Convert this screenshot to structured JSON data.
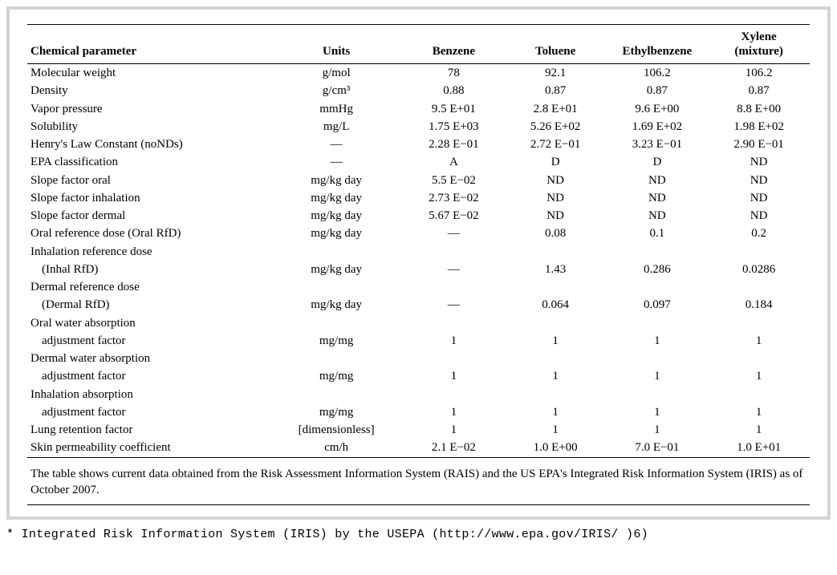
{
  "table": {
    "headers": {
      "param": "Chemical parameter",
      "units": "Units",
      "c1": "Benzene",
      "c2": "Toluene",
      "c3": "Ethylbenzene",
      "c4_line1": "Xylene",
      "c4_line2": "(mixture)"
    },
    "rows": [
      {
        "param": "Molecular weight",
        "units": "g/mol",
        "c1": "78",
        "c2": "92.1",
        "c3": "106.2",
        "c4": "106.2"
      },
      {
        "param": "Density",
        "units": "g/cm³",
        "c1": "0.88",
        "c2": "0.87",
        "c3": "0.87",
        "c4": "0.87"
      },
      {
        "param": "Vapor pressure",
        "units": "mmHg",
        "c1": "9.5 E+01",
        "c2": "2.8 E+01",
        "c3": "9.6 E+00",
        "c4": "8.8 E+00"
      },
      {
        "param": "Solubility",
        "units": "mg/L",
        "c1": "1.75 E+03",
        "c2": "5.26 E+02",
        "c3": "1.69 E+02",
        "c4": "1.98 E+02"
      },
      {
        "param": "Henry's Law Constant (noNDs)",
        "units": "—",
        "c1": "2.28 E−01",
        "c2": "2.72 E−01",
        "c3": "3.23 E−01",
        "c4": "2.90 E−01"
      },
      {
        "param": "EPA classification",
        "units": "—",
        "c1": "A",
        "c2": "D",
        "c3": "D",
        "c4": "ND"
      },
      {
        "param": "Slope factor oral",
        "units": "mg/kg day",
        "c1": "5.5 E−02",
        "c2": "ND",
        "c3": "ND",
        "c4": "ND"
      },
      {
        "param": "Slope factor inhalation",
        "units": "mg/kg day",
        "c1": "2.73 E−02",
        "c2": "ND",
        "c3": "ND",
        "c4": "ND"
      },
      {
        "param": "Slope factor dermal",
        "units": "mg/kg day",
        "c1": "5.67 E−02",
        "c2": "ND",
        "c3": "ND",
        "c4": "ND"
      },
      {
        "param": "Oral reference dose (Oral RfD)",
        "units": "mg/kg day",
        "c1": "—",
        "c2": "0.08",
        "c3": "0.1",
        "c4": "0.2"
      },
      {
        "param": "Inhalation reference dose",
        "units": "",
        "c1": "",
        "c2": "",
        "c3": "",
        "c4": ""
      },
      {
        "param": "(Inhal RfD)",
        "indent": true,
        "units": "mg/kg day",
        "c1": "—",
        "c2": "1.43",
        "c3": "0.286",
        "c4": "0.0286"
      },
      {
        "param": "Dermal reference dose",
        "units": "",
        "c1": "",
        "c2": "",
        "c3": "",
        "c4": ""
      },
      {
        "param": "(Dermal RfD)",
        "indent": true,
        "units": "mg/kg day",
        "c1": "—",
        "c2": "0.064",
        "c3": "0.097",
        "c4": "0.184"
      },
      {
        "param": "Oral water absorption",
        "units": "",
        "c1": "",
        "c2": "",
        "c3": "",
        "c4": ""
      },
      {
        "param": "adjustment factor",
        "indent": true,
        "units": "mg/mg",
        "c1": "1",
        "c2": "1",
        "c3": "1",
        "c4": "1"
      },
      {
        "param": "Dermal water absorption",
        "units": "",
        "c1": "",
        "c2": "",
        "c3": "",
        "c4": ""
      },
      {
        "param": "adjustment factor",
        "indent": true,
        "units": "mg/mg",
        "c1": "1",
        "c2": "1",
        "c3": "1",
        "c4": "1"
      },
      {
        "param": "Inhalation absorption",
        "units": "",
        "c1": "",
        "c2": "",
        "c3": "",
        "c4": ""
      },
      {
        "param": "adjustment factor",
        "indent": true,
        "units": "mg/mg",
        "c1": "1",
        "c2": "1",
        "c3": "1",
        "c4": "1"
      },
      {
        "param": "Lung retention factor",
        "units": "[dimensionless]",
        "c1": "1",
        "c2": "1",
        "c3": "1",
        "c4": "1"
      },
      {
        "param": "Skin permeability coefficient",
        "units": "cm/h",
        "c1": "2.1 E−02",
        "c2": "1.0 E+00",
        "c3": "7.0 E−01",
        "c4": "1.0 E+01"
      }
    ],
    "footnote": "The table shows current data obtained from the Risk Assessment Information System (RAIS) and the US EPA's Integrated Risk Information System (IRIS) as of October 2007."
  },
  "below_note": "* Integrated Risk Information System (IRIS) by the USEPA (http://www.epa.gov/IRIS/ )6)"
}
